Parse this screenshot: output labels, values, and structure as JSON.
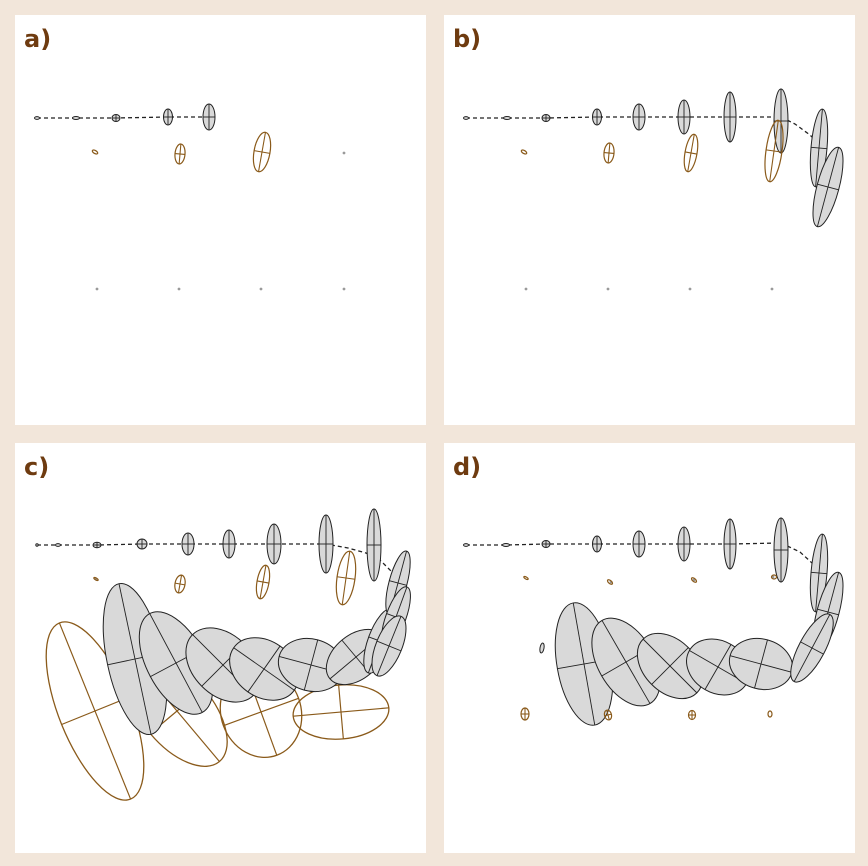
{
  "colors": {
    "background": "#f2e6da",
    "panel": "#ffffff",
    "label": "#6e3b10",
    "estimate_fill": "#d9d9d9",
    "estimate_stroke": "#222222",
    "ground_truth_stroke": "#8a5a1a",
    "landmark": "#9a9a9a",
    "trajectory": "#222222"
  },
  "panels": [
    {
      "label": "a)",
      "path": [
        [
          37,
          118
        ],
        [
          76,
          118
        ],
        [
          116,
          118
        ],
        [
          168,
          117
        ],
        [
          209,
          117
        ]
      ],
      "robot": [
        [
          37,
          118,
          2.5,
          1.4,
          0
        ],
        [
          76,
          118,
          3.5,
          1.5,
          0
        ],
        [
          116,
          118,
          4,
          3.5,
          0
        ],
        [
          168,
          117,
          4.5,
          8,
          0
        ],
        [
          209,
          117,
          6,
          13,
          0
        ]
      ],
      "truth": [
        [
          95,
          152,
          3,
          1.5,
          30
        ],
        [
          180,
          154,
          5,
          10,
          5
        ],
        [
          262,
          152,
          8,
          20,
          10
        ]
      ],
      "marks": [
        [
          344,
          153
        ],
        [
          97,
          289
        ],
        [
          179,
          289
        ],
        [
          261,
          289
        ],
        [
          344,
          289
        ]
      ],
      "est": []
    },
    {
      "label": "b)",
      "path": [
        [
          466,
          118
        ],
        [
          507,
          118
        ],
        [
          546,
          118
        ],
        [
          597,
          117
        ],
        [
          639,
          117
        ],
        [
          684,
          117
        ],
        [
          730,
          117
        ],
        [
          760,
          117
        ],
        [
          781,
          117
        ],
        [
          795,
          124
        ],
        [
          810,
          135
        ],
        [
          820,
          145
        ],
        [
          828,
          157
        ]
      ],
      "robot": [
        [
          466,
          118,
          2.5,
          1.4,
          0
        ],
        [
          507,
          118,
          3.5,
          1.5,
          0
        ],
        [
          546,
          118,
          4,
          3.5,
          0
        ],
        [
          597,
          117,
          4.5,
          8,
          0
        ],
        [
          639,
          117,
          6,
          13,
          0
        ],
        [
          684,
          117,
          6,
          17,
          0
        ],
        [
          730,
          117,
          6,
          25,
          0
        ],
        [
          781,
          121,
          7,
          32,
          0
        ],
        [
          819,
          148,
          8,
          39,
          5
        ],
        [
          828,
          187,
          11,
          41,
          15
        ]
      ],
      "truth": [
        [
          524,
          152,
          3,
          1.5,
          30
        ],
        [
          609,
          153,
          5,
          10,
          5
        ],
        [
          691,
          153,
          6,
          19,
          10
        ],
        [
          774,
          151,
          8,
          31,
          8
        ]
      ],
      "marks": [
        [
          526,
          289
        ],
        [
          608,
          289
        ],
        [
          690,
          289
        ],
        [
          772,
          289
        ]
      ],
      "est": []
    },
    {
      "label": "c)",
      "path": [
        [
          37,
          545
        ],
        [
          58,
          545
        ],
        [
          97,
          545
        ],
        [
          142,
          544
        ],
        [
          188,
          544
        ],
        [
          229,
          544
        ],
        [
          274,
          544
        ],
        [
          326,
          544
        ],
        [
          348,
          548
        ],
        [
          366,
          553
        ],
        [
          380,
          560
        ],
        [
          392,
          572
        ],
        [
          400,
          582
        ]
      ],
      "robot": [
        [
          37,
          545,
          1.2,
          1.2,
          0
        ],
        [
          58,
          545,
          2.5,
          1.4,
          0
        ],
        [
          97,
          545,
          4,
          2.8,
          0
        ],
        [
          142,
          544,
          5,
          5,
          0
        ],
        [
          188,
          544,
          6,
          11,
          0
        ],
        [
          229,
          544,
          6,
          14,
          0
        ],
        [
          274,
          544,
          7,
          20,
          0
        ],
        [
          326,
          544,
          7,
          29,
          0
        ],
        [
          374,
          545,
          7,
          36,
          0
        ],
        [
          398,
          583,
          9,
          33,
          15
        ],
        [
          396,
          617,
          10,
          32,
          20
        ],
        [
          389,
          646,
          13,
          32,
          22
        ]
      ],
      "truth": [
        [
          96,
          579,
          2.5,
          1,
          30
        ],
        [
          180,
          584,
          5,
          9,
          10
        ],
        [
          263,
          582,
          6,
          17,
          10
        ],
        [
          346,
          578,
          9,
          27,
          8
        ]
      ],
      "marks": [
        [
          96,
          579
        ]
      ],
      "est": [
        [
          135,
          659,
          28,
          77,
          -12
        ],
        [
          176,
          663,
          29,
          56,
          -28
        ],
        [
          223,
          665,
          30,
          43,
          -45
        ],
        [
          264,
          669,
          28,
          37,
          -55
        ],
        [
          311,
          665,
          26,
          33,
          -75
        ],
        [
          356,
          657,
          22,
          34,
          50
        ],
        [
          380,
          641,
          12,
          34,
          20
        ]
      ],
      "bigtruth": [
        [
          95,
          711,
          36,
          95,
          -22
        ],
        [
          177,
          711,
          35,
          66,
          -40
        ],
        [
          261,
          712,
          40,
          46,
          -20
        ],
        [
          341,
          712,
          48,
          27,
          -5
        ]
      ]
    },
    {
      "label": "d)",
      "path": [
        [
          466,
          545
        ],
        [
          506,
          545
        ],
        [
          546,
          544
        ],
        [
          597,
          544
        ],
        [
          639,
          544
        ],
        [
          684,
          544
        ],
        [
          730,
          544
        ],
        [
          781,
          543
        ],
        [
          800,
          552
        ],
        [
          812,
          563
        ],
        [
          818,
          572
        ]
      ],
      "robot": [
        [
          466,
          545,
          2.5,
          1.4,
          0
        ],
        [
          506,
          545,
          3.5,
          1.5,
          0
        ],
        [
          546,
          544,
          4,
          3.5,
          0
        ],
        [
          597,
          544,
          4.5,
          8,
          0
        ],
        [
          639,
          544,
          6,
          13,
          0
        ],
        [
          684,
          544,
          6,
          17,
          0
        ],
        [
          730,
          544,
          6,
          25,
          0
        ],
        [
          781,
          550,
          7,
          32,
          0
        ],
        [
          819,
          573,
          8,
          39,
          5
        ],
        [
          828,
          612,
          11,
          41,
          15
        ],
        [
          812,
          648,
          13,
          38,
          28
        ],
        [
          542,
          648,
          2,
          5,
          10
        ]
      ],
      "truth": [
        [
          526,
          578,
          2.5,
          1,
          30
        ],
        [
          610,
          582,
          3,
          1.5,
          40
        ],
        [
          694,
          580,
          3,
          1.5,
          40
        ],
        [
          774,
          577,
          2.5,
          2,
          0
        ],
        [
          525,
          714,
          4,
          6,
          0
        ],
        [
          608,
          715,
          3.5,
          5,
          -15
        ],
        [
          692,
          715,
          3.5,
          4.5,
          0
        ],
        [
          770,
          714,
          2,
          3,
          0
        ]
      ],
      "marks": [
        [
          611,
          582
        ],
        [
          694,
          580
        ],
        [
          773,
          577
        ]
      ],
      "est": [
        [
          584,
          664,
          27,
          62,
          -10
        ],
        [
          626,
          662,
          28,
          48,
          -30
        ],
        [
          670,
          666,
          26,
          38,
          -45
        ],
        [
          718,
          667,
          26,
          33,
          -60
        ],
        [
          761,
          664,
          25,
          32,
          -75
        ]
      ],
      "bigtruth": []
    }
  ]
}
